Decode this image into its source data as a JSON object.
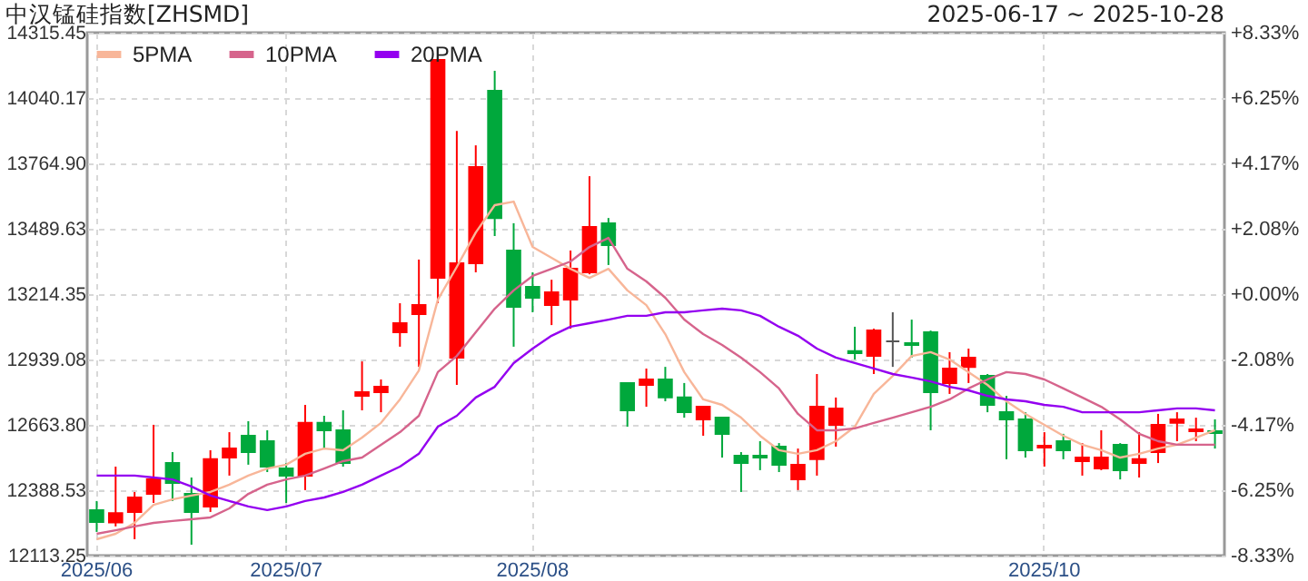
{
  "chart_data": {
    "type": "candlestick",
    "title": "中汉锰硅指数[ZHSMD]",
    "subtitle": "2025-06-17 ~ 2025-10-28",
    "categories": [
      "2025/06",
      null,
      null,
      null,
      null,
      null,
      null,
      null,
      null,
      null,
      "2025/07",
      null,
      null,
      null,
      null,
      null,
      null,
      null,
      null,
      null,
      null,
      null,
      null,
      "2025/08",
      null,
      null,
      null,
      null,
      null,
      null,
      null,
      null,
      null,
      null,
      null,
      null,
      null,
      null,
      null,
      null,
      null,
      null,
      null,
      null,
      null,
      null,
      null,
      null,
      null,
      null,
      "2025/10",
      null,
      null,
      null,
      null,
      null,
      null,
      null,
      null,
      null
    ],
    "ohlc": [
      [
        12304,
        12343,
        12213,
        12255
      ],
      [
        12253,
        12488,
        12236,
        12292
      ],
      [
        12297,
        12381,
        12182,
        12358
      ],
      [
        12373,
        12664,
        12335,
        12434
      ],
      [
        12503,
        12549,
        12343,
        12419
      ],
      [
        12373,
        12442,
        12159,
        12297
      ],
      [
        12320,
        12557,
        12297,
        12519
      ],
      [
        12526,
        12633,
        12450,
        12564
      ],
      [
        12618,
        12679,
        12496,
        12549
      ],
      [
        12595,
        12641,
        12465,
        12488
      ],
      [
        12480,
        12503,
        12335,
        12450
      ],
      [
        12450,
        12748,
        12389,
        12672
      ],
      [
        12672,
        12702,
        12564,
        12641
      ],
      [
        12641,
        12725,
        12488,
        12503
      ],
      [
        12786,
        12931,
        12725,
        12801
      ],
      [
        12801,
        12855,
        12717,
        12824
      ],
      [
        13054,
        13176,
        12993,
        13092
      ],
      [
        13130,
        13360,
        12908,
        13168
      ],
      [
        13283,
        14201,
        13176,
        14201
      ],
      [
        12947,
        13902,
        12832,
        13344
      ],
      [
        13344,
        13841,
        13306,
        13750
      ],
      [
        14071,
        14155,
        13459,
        13535
      ],
      [
        13398,
        13513,
        12993,
        13161
      ],
      [
        13245,
        13306,
        13138,
        13199
      ],
      [
        13168,
        13275,
        13084,
        13222
      ],
      [
        13191,
        13398,
        13069,
        13321
      ],
      [
        13306,
        13711,
        13298,
        13497
      ],
      [
        13513,
        13535,
        13337,
        13421
      ],
      [
        12840,
        12840,
        12656,
        12725
      ],
      [
        12832,
        12901,
        12740,
        12855
      ],
      [
        12855,
        12908,
        12763,
        12779
      ],
      [
        12779,
        12840,
        12694,
        12717
      ],
      [
        12687,
        12740,
        12618,
        12740
      ],
      [
        12694,
        12694,
        12526,
        12626
      ],
      [
        12534,
        12549,
        12381,
        12503
      ],
      [
        12534,
        12595,
        12473,
        12526
      ],
      [
        12572,
        12587,
        12465,
        12496
      ],
      [
        12434,
        12564,
        12389,
        12496
      ],
      [
        12519,
        12878,
        12450,
        12740
      ],
      [
        12664,
        12779,
        12572,
        12733
      ],
      [
        12974,
        13077,
        12939,
        12966
      ],
      [
        12954,
        13069,
        12878,
        13061
      ],
      [
        13016,
        13138,
        12908,
        13016
      ],
      [
        13008,
        13107,
        12947,
        13000
      ],
      [
        13054,
        13061,
        12641,
        12801
      ],
      [
        12840,
        12970,
        12794,
        12901
      ],
      [
        12908,
        12985,
        12840,
        12947
      ],
      [
        12870,
        12878,
        12717,
        12748
      ],
      [
        12717,
        12786,
        12519,
        12687
      ],
      [
        12687,
        12717,
        12526,
        12557
      ],
      [
        12568,
        12633,
        12488,
        12576
      ],
      [
        12595,
        12626,
        12519,
        12557
      ],
      [
        12511,
        12587,
        12450,
        12526
      ],
      [
        12480,
        12641,
        12473,
        12526
      ],
      [
        12580,
        12587,
        12434,
        12473
      ],
      [
        12503,
        12633,
        12442,
        12519
      ],
      [
        12549,
        12710,
        12503,
        12664
      ],
      [
        12672,
        12717,
        12595,
        12687
      ],
      [
        12637,
        12694,
        12595,
        12645
      ],
      [
        12637,
        12687,
        12564,
        12629
      ]
    ],
    "colors": [
      "#00a83c",
      "#ff0000",
      "#ff0000",
      "#ff0000",
      "#00a83c",
      "#00a83c",
      "#ff0000",
      "#ff0000",
      "#00a83c",
      "#00a83c",
      "#00a83c",
      "#ff0000",
      "#00a83c",
      "#00a83c",
      "#ff0000",
      "#ff0000",
      "#ff0000",
      "#ff0000",
      "#ff0000",
      "#ff0000",
      "#ff0000",
      "#00a83c",
      "#00a83c",
      "#00a83c",
      "#ff0000",
      "#ff0000",
      "#ff0000",
      "#00a83c",
      "#00a83c",
      "#ff0000",
      "#00a83c",
      "#00a83c",
      "#ff0000",
      "#00a83c",
      "#00a83c",
      "#00a83c",
      "#00a83c",
      "#ff0000",
      "#ff0000",
      "#ff0000",
      "#00a83c",
      "#ff0000",
      "#555555",
      "#00a83c",
      "#00a83c",
      "#ff0000",
      "#ff0000",
      "#00a83c",
      "#00a83c",
      "#00a83c",
      "#ff0000",
      "#00a83c",
      "#ff0000",
      "#ff0000",
      "#00a83c",
      "#ff0000",
      "#ff0000",
      "#ff0000",
      "#ff0000",
      "#00a83c"
    ],
    "series": [
      {
        "name": "5PMA",
        "type": "line",
        "color": "#f8b699",
        "values": [
          12182,
          12205,
          12251,
          12327,
          12350,
          12366,
          12381,
          12412,
          12450,
          12480,
          12496,
          12542,
          12564,
          12557,
          12610,
          12672,
          12771,
          12893,
          13191,
          13329,
          13474,
          13589,
          13604,
          13413,
          13367,
          13321,
          13283,
          13321,
          13230,
          13168,
          13046,
          12886,
          12771,
          12748,
          12694,
          12618,
          12557,
          12542,
          12557,
          12595,
          12656,
          12794,
          12870,
          12954,
          12970,
          12939,
          12886,
          12832,
          12763,
          12710,
          12664,
          12618,
          12580,
          12557,
          12526,
          12542,
          12564,
          12580,
          12610,
          12641
        ]
      },
      {
        "name": "10PMA",
        "type": "line",
        "color": "#d6648c",
        "values": [
          12205,
          12220,
          12236,
          12251,
          12259,
          12266,
          12274,
          12312,
          12373,
          12412,
          12434,
          12450,
          12480,
          12511,
          12526,
          12580,
          12633,
          12702,
          12886,
          12954,
          13054,
          13153,
          13230,
          13291,
          13321,
          13352,
          13413,
          13451,
          13321,
          13268,
          13199,
          13107,
          13046,
          13000,
          12947,
          12886,
          12817,
          12710,
          12641,
          12641,
          12649,
          12672,
          12694,
          12717,
          12740,
          12771,
          12817,
          12855,
          12886,
          12878,
          12855,
          12817,
          12779,
          12740,
          12687,
          12626,
          12595,
          12580,
          12580,
          12580
        ]
      },
      {
        "name": "20PMA",
        "type": "line",
        "color": "#9400f0",
        "values": [
          12450,
          12450,
          12450,
          12442,
          12434,
          12404,
          12366,
          12343,
          12320,
          12305,
          12320,
          12343,
          12358,
          12381,
          12412,
          12450,
          12488,
          12542,
          12656,
          12702,
          12779,
          12824,
          12924,
          12985,
          13039,
          13077,
          13092,
          13107,
          13123,
          13123,
          13138,
          13138,
          13146,
          13153,
          13146,
          13123,
          13077,
          13039,
          12985,
          12947,
          12924,
          12901,
          12878,
          12863,
          12847,
          12824,
          12809,
          12786,
          12771,
          12763,
          12748,
          12740,
          12717,
          12717,
          12717,
          12717,
          12725,
          12733,
          12733,
          12725
        ]
      }
    ],
    "ylim": [
      12113.25,
      14315.45
    ],
    "yticks": [
      12113.25,
      12388.53,
      {
        "value": 12663.8,
        "label": "12663.80"
      },
      12939.08,
      13214.35,
      13489.63,
      {
        "value": 13764.9,
        "label": "13764.90"
      },
      14040.17,
      14315.45
    ],
    "y2lim": [
      -8.33,
      8.33
    ],
    "y2ticks": [
      {
        "value": -8.33,
        "label": "-8.33%"
      },
      {
        "value": -6.25,
        "label": "-6.25%"
      },
      {
        "value": -4.17,
        "label": "-4.17%"
      },
      {
        "value": -2.08,
        "label": "-2.08%"
      },
      {
        "value": 0,
        "label": "+0.00%"
      },
      {
        "value": 2.08,
        "label": "+2.08%"
      },
      {
        "value": 4.17,
        "label": "+4.17%"
      },
      {
        "value": 6.25,
        "label": "+6.25%"
      },
      {
        "value": 8.33,
        "label": "+8.33%"
      }
    ],
    "grid": true,
    "legend": "top left"
  }
}
